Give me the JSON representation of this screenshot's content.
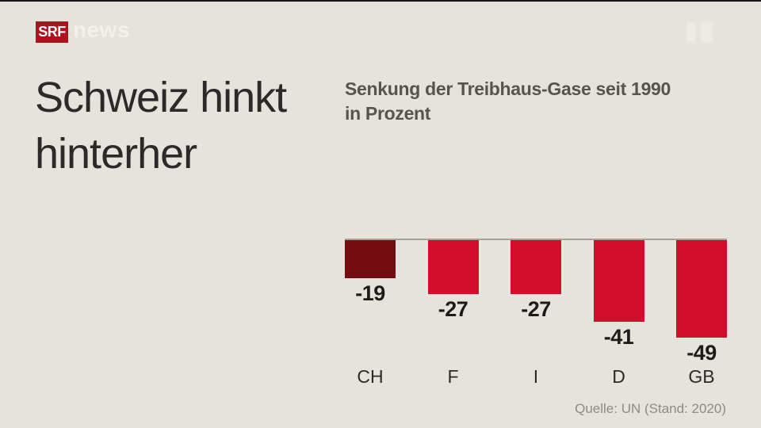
{
  "header": {
    "logo_text": "SRF",
    "brand": "news"
  },
  "headline": {
    "line1": "Schweiz hinkt",
    "line2": "hinterher"
  },
  "chart": {
    "title_line1": "Senkung der Treibhaus-Gase seit 1990",
    "title_line2": "in Prozent",
    "source": "Quelle: UN (Stand: 2020)"
  },
  "chart_data": {
    "type": "bar",
    "title": "Senkung der Treibhaus-Gase seit 1990 in Prozent",
    "categories": [
      "CH",
      "F",
      "I",
      "D",
      "GB"
    ],
    "values": [
      -19,
      -27,
      -27,
      -41,
      -49
    ],
    "xlabel": "",
    "ylabel": "Prozent",
    "ylim": [
      -50,
      0
    ],
    "grid": false,
    "legend": false,
    "orientation": "vertical-downward-from-zero-baseline",
    "bar_colors": [
      "#740c10",
      "#d30e2d",
      "#d30e2d",
      "#d30e2d",
      "#d30e2d"
    ],
    "highlight_index": 0,
    "data_labels": [
      "-19",
      "-27",
      "-27",
      "-41",
      "-49"
    ],
    "source": "Quelle: UN (Stand: 2020)"
  },
  "colors": {
    "background": "#e6e3dc",
    "headline": "#2b2a28",
    "chart-title": "#58544b",
    "bar-red": "#d30e2d",
    "bar-dark-red": "#740c10",
    "baseline": "#a3a097",
    "value-label": "#1c1b19",
    "category-label": "#2b2a28",
    "source": "#8d8b84",
    "logo-red": "#a9141f",
    "brand-text": "#f5f3ed"
  }
}
